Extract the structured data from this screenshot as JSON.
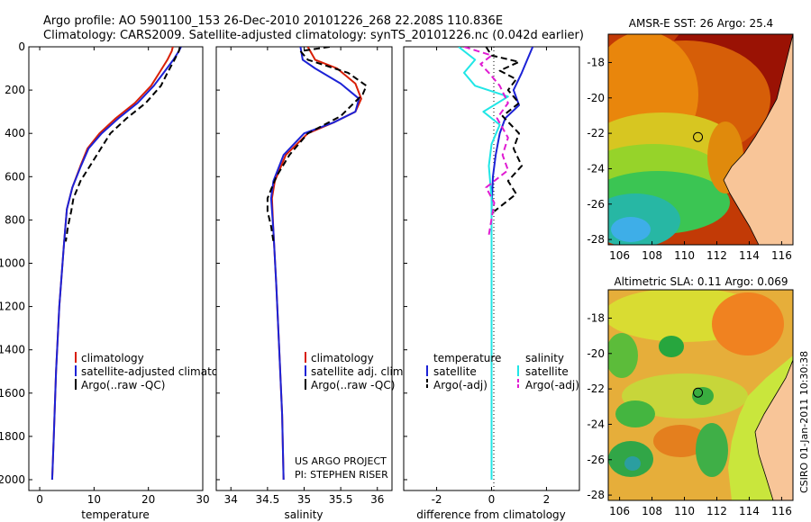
{
  "header": {
    "line1": "Argo profile: AO 5901100_153 26-Dec-2010 20101226_268 22.208S 110.836E",
    "line2": "Climatology: CARS2009. Satellite-adjusted climatology: synTS_20101226.nc (0.042d earlier)"
  },
  "colors": {
    "climatology": "#d81e05",
    "satellite": "#1c22d6",
    "argo": "#000000",
    "sat_salinity": "#20e6e6",
    "argo_salinity": "#e01cd2",
    "land": "#f8c598"
  },
  "credits": {
    "line1": "US ARGO PROJECT",
    "line2": "PI: STEPHEN RISER",
    "stamp": "CSIRO 01-Jan-2011 10:30:38"
  },
  "chart_data": [
    {
      "id": "temperature",
      "type": "line",
      "xlabel": "temperature",
      "ylabel": "",
      "xlim": [
        -2,
        30
      ],
      "ylim": [
        2050,
        0
      ],
      "xticks": [
        0,
        10,
        20,
        30
      ],
      "yticks": [
        0,
        200,
        400,
        600,
        800,
        1000,
        1200,
        1400,
        1600,
        1800,
        2000
      ],
      "legend": {
        "placement": "lower-middle",
        "entries": [
          "climatology",
          "satellite-adjusted climatology",
          "Argo(..raw -QC)"
        ]
      },
      "series": [
        {
          "name": "climatology",
          "color_key": "climatology",
          "dash": "",
          "x": [
            24.5,
            24.3,
            23.5,
            22.0,
            20.5,
            17.5,
            14.0,
            11.0,
            8.8,
            7.5,
            6.0,
            5.0,
            4.5,
            3.6,
            3.0,
            2.6,
            2.3
          ],
          "y": [
            0,
            20,
            60,
            120,
            180,
            260,
            330,
            400,
            470,
            550,
            650,
            750,
            900,
            1200,
            1500,
            1800,
            2000
          ]
        },
        {
          "name": "satellite-adjusted climatology",
          "color_key": "satellite",
          "dash": "",
          "x": [
            26.0,
            25.6,
            24.6,
            22.8,
            21.0,
            18.0,
            14.5,
            11.4,
            9.0,
            7.6,
            6.0,
            5.0,
            4.5,
            3.6,
            3.0,
            2.6,
            2.3
          ],
          "y": [
            0,
            20,
            60,
            120,
            180,
            260,
            330,
            400,
            470,
            550,
            650,
            750,
            900,
            1200,
            1500,
            1800,
            2000
          ]
        },
        {
          "name": "Argo(..raw -QC)",
          "color_key": "argo",
          "dash": "7,4",
          "x": [
            25.8,
            25.6,
            24.8,
            23.5,
            22.3,
            19.5,
            16.0,
            13.0,
            11.5,
            9.5,
            7.5,
            6.2,
            5.8,
            5.2,
            4.8
          ],
          "y": [
            0,
            20,
            60,
            120,
            180,
            260,
            330,
            400,
            460,
            540,
            620,
            700,
            760,
            830,
            900
          ]
        }
      ]
    },
    {
      "id": "salinity",
      "type": "line",
      "xlabel": "salinity",
      "ylabel": "",
      "xlim": [
        33.8,
        36.2
      ],
      "ylim": [
        2050,
        0
      ],
      "xticks": [
        34,
        34.5,
        35,
        35.5,
        36
      ],
      "legend": {
        "placement": "lower-middle",
        "entries": [
          "climatology",
          "satellite adj. clim.",
          "Argo(..raw -QC)"
        ]
      },
      "series": [
        {
          "name": "climatology",
          "color_key": "climatology",
          "dash": "",
          "x": [
            35.05,
            35.15,
            35.45,
            35.7,
            35.78,
            35.7,
            35.4,
            35.05,
            34.75,
            34.6,
            34.56,
            34.58,
            34.62,
            34.66,
            34.7,
            34.72
          ],
          "y": [
            0,
            60,
            100,
            170,
            240,
            300,
            350,
            400,
            500,
            620,
            700,
            850,
            1100,
            1400,
            1700,
            2000
          ]
        },
        {
          "name": "satellite adj. clim.",
          "color_key": "satellite",
          "dash": "",
          "x": [
            34.95,
            34.98,
            35.15,
            35.5,
            35.75,
            35.7,
            35.4,
            35.0,
            34.72,
            34.58,
            34.55,
            34.58,
            34.62,
            34.66,
            34.7,
            34.72
          ],
          "y": [
            0,
            60,
            100,
            170,
            240,
            300,
            350,
            400,
            500,
            620,
            700,
            850,
            1100,
            1400,
            1700,
            2000
          ]
        },
        {
          "name": "Argo(..raw -QC)",
          "color_key": "argo",
          "dash": "7,4",
          "x": [
            35.35,
            34.95,
            35.05,
            35.6,
            35.85,
            35.8,
            35.5,
            35.05,
            34.8,
            34.62,
            34.5,
            34.5,
            34.55,
            34.58
          ],
          "y": [
            0,
            20,
            60,
            120,
            180,
            220,
            320,
            400,
            500,
            600,
            700,
            760,
            830,
            900
          ]
        }
      ]
    },
    {
      "id": "difference",
      "type": "line",
      "xlabel": "difference from climatology",
      "ylabel": "",
      "xlim": [
        -3.2,
        3.2
      ],
      "ylim": [
        2050,
        0
      ],
      "xticks": [
        -2,
        0,
        2
      ],
      "legend": {
        "placement": "lower-middle",
        "headers": [
          "temperature",
          "salinity"
        ],
        "entries": [
          "satellite",
          "Argo(-adj)",
          "satellite",
          "Argo(-adj)"
        ]
      },
      "series": [
        {
          "name": "satellite",
          "group": "temperature",
          "color_key": "satellite",
          "dash": "",
          "x": [
            1.5,
            1.3,
            1.1,
            0.8,
            1.0,
            0.5,
            0.3,
            0.15,
            0.05,
            0.0,
            0.0,
            0.0
          ],
          "y": [
            0,
            60,
            120,
            200,
            270,
            330,
            400,
            500,
            600,
            750,
            1000,
            2000
          ]
        },
        {
          "name": "Argo(-adj)",
          "group": "temperature",
          "color_key": "argo",
          "dash": "7,4",
          "x": [
            -0.2,
            0.0,
            1.0,
            0.3,
            0.9,
            0.6,
            1.0,
            0.4,
            1.0,
            0.8,
            1.1,
            0.6,
            0.9,
            0.1
          ],
          "y": [
            0,
            40,
            70,
            110,
            150,
            200,
            260,
            320,
            400,
            470,
            550,
            620,
            680,
            760
          ]
        },
        {
          "name": "satellite",
          "group": "salinity",
          "color_key": "sat_salinity",
          "dash": "",
          "x": [
            -1.2,
            -0.6,
            -1.0,
            -0.6,
            0.6,
            -0.3,
            0.3,
            0.0,
            -0.1,
            0.0,
            0.0,
            0.0
          ],
          "y": [
            0,
            60,
            120,
            180,
            230,
            300,
            360,
            450,
            550,
            700,
            1000,
            2000
          ]
        },
        {
          "name": "Argo(-adj)",
          "group": "salinity",
          "color_key": "argo_salinity",
          "dash": "7,4",
          "x": [
            -1.0,
            0.0,
            -0.4,
            -0.1,
            0.3,
            0.6,
            0.2,
            0.6,
            0.4,
            0.6,
            -0.2,
            0.1,
            -0.1
          ],
          "y": [
            0,
            40,
            80,
            120,
            180,
            260,
            330,
            420,
            500,
            570,
            650,
            720,
            870
          ]
        }
      ]
    },
    {
      "id": "sst-map",
      "type": "heatmap",
      "title": "AMSR-E SST: 26 Argo: 25.4",
      "xticks": [
        106,
        108,
        110,
        112,
        114,
        116
      ],
      "yticks": [
        -18,
        -20,
        -22,
        -24,
        -26,
        -28
      ],
      "xlim": [
        105.3,
        116.7
      ],
      "ylim": [
        -28.3,
        -16.4
      ],
      "marker": {
        "lon": 110.836,
        "lat": -22.208
      }
    },
    {
      "id": "sla-map",
      "type": "heatmap",
      "title": "Altimetric SLA: 0.11 Argo: 0.069",
      "xticks": [
        106,
        108,
        110,
        112,
        114,
        116
      ],
      "yticks": [
        -18,
        -20,
        -22,
        -24,
        -26,
        -28
      ],
      "xlim": [
        105.3,
        116.7
      ],
      "ylim": [
        -28.3,
        -16.4
      ],
      "marker": {
        "lon": 110.836,
        "lat": -22.208
      }
    }
  ]
}
